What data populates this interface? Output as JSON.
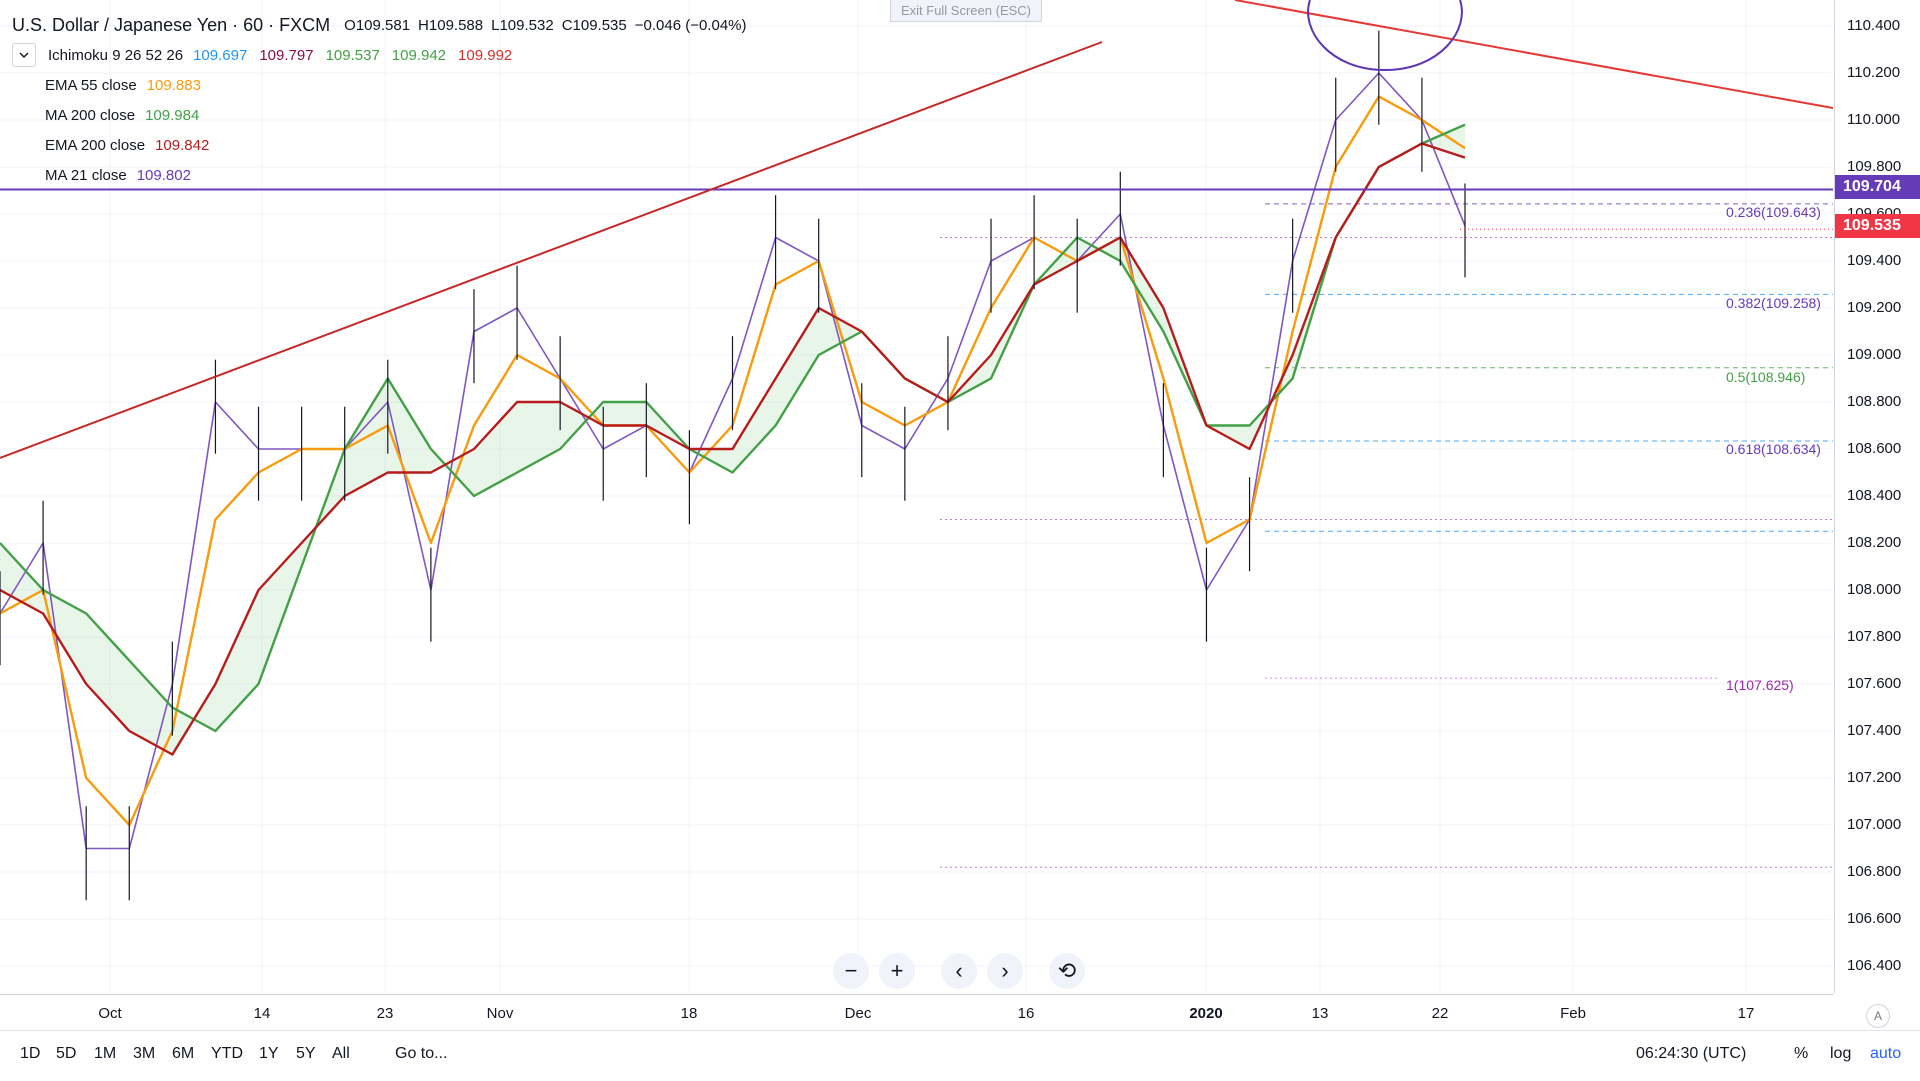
{
  "header": {
    "symbol_title": "U.S. Dollar / Japanese Yen · 60 · FXCM",
    "ohlc": {
      "open": "O109.581",
      "high": "H109.588",
      "low": "L109.532",
      "close": "C109.535",
      "change": "−0.046 (−0.04%)"
    }
  },
  "exit_fullscreen": "Exit Full Screen (ESC)",
  "indicators": [
    {
      "name": "Ichimoku 9 26 52 26",
      "values": [
        "109.697",
        "109.797",
        "109.537",
        "109.942",
        "109.992"
      ],
      "colors": [
        "#2196f3",
        "#880e4f",
        "#43a047",
        "#43a047",
        "#d32f2f"
      ]
    },
    {
      "name": "EMA 55 close",
      "values": [
        "109.883"
      ],
      "colors": [
        "#f89b0c"
      ]
    },
    {
      "name": "MA 200 close",
      "values": [
        "109.984"
      ],
      "colors": [
        "#43a047"
      ]
    },
    {
      "name": "EMA 200 close",
      "values": [
        "109.842"
      ],
      "colors": [
        "#b71c1c"
      ]
    },
    {
      "name": "MA 21 close",
      "values": [
        "109.802"
      ],
      "colors": [
        "#673ab7"
      ]
    }
  ],
  "price_axis": {
    "ticks": [
      "110.400",
      "110.200",
      "110.000",
      "109.800",
      "109.600",
      "109.400",
      "109.200",
      "109.000",
      "108.800",
      "108.600",
      "108.400",
      "108.200",
      "108.000",
      "107.800",
      "107.600",
      "107.400",
      "107.200",
      "107.000",
      "106.800",
      "106.600",
      "106.400"
    ],
    "current_price_label": "109.535",
    "current_price_color": "#f23645",
    "hline_label": "109.704",
    "hline_color": "#673ab7"
  },
  "time_axis": {
    "ticks": [
      "Oct",
      "14",
      "23",
      "Nov",
      "18",
      "Dec",
      "16",
      "2020",
      "13",
      "22",
      "Feb",
      "17"
    ]
  },
  "fibonacci": [
    {
      "label": "0.236(109.643)",
      "color": "#673ab7"
    },
    {
      "label": "0.382(109.258)",
      "color": "#673ab7"
    },
    {
      "label": "0.5(108.946)",
      "color": "#43a047"
    },
    {
      "label": "0.618(108.634)",
      "color": "#673ab7"
    },
    {
      "label": "1(107.625)",
      "color": "#9c27b0"
    }
  ],
  "chart_data": {
    "type": "line",
    "title": "U.S. Dollar / Japanese Yen · 60 · FXCM",
    "xlabel": "",
    "ylabel": "",
    "ylim": [
      106.3,
      110.5
    ],
    "x": [
      "Sep 26",
      "Oct 1",
      "Oct 4",
      "Oct 7",
      "Oct 10",
      "Oct 14",
      "Oct 17",
      "Oct 21",
      "Oct 24",
      "Oct 28",
      "Oct 31",
      "Nov 4",
      "Nov 7",
      "Nov 11",
      "Nov 14",
      "Nov 18",
      "Nov 21",
      "Nov 25",
      "Nov 28",
      "Dec 2",
      "Dec 5",
      "Dec 9",
      "Dec 12",
      "Dec 16",
      "Dec 19",
      "Dec 23",
      "Dec 27",
      "Dec 31",
      "Jan 3",
      "Jan 7",
      "Jan 10",
      "Jan 14",
      "Jan 17",
      "Jan 20",
      "Jan 22"
    ],
    "series": [
      {
        "name": "Close",
        "values": [
          107.9,
          108.2,
          106.9,
          106.9,
          107.6,
          108.8,
          108.6,
          108.6,
          108.6,
          108.8,
          108.0,
          109.1,
          109.2,
          108.9,
          108.6,
          108.7,
          108.5,
          108.9,
          109.5,
          109.4,
          108.7,
          108.6,
          108.9,
          109.4,
          109.5,
          109.4,
          109.6,
          108.7,
          108.0,
          108.3,
          109.4,
          110.0,
          110.2,
          110.0,
          109.55
        ],
        "color": "#7e57c2"
      },
      {
        "name": "EMA 55 close",
        "values": [
          107.9,
          108.0,
          107.2,
          107.0,
          107.4,
          108.3,
          108.5,
          108.6,
          108.6,
          108.7,
          108.2,
          108.7,
          109.0,
          108.9,
          108.7,
          108.7,
          108.5,
          108.7,
          109.3,
          109.4,
          108.8,
          108.7,
          108.8,
          109.2,
          109.5,
          109.4,
          109.5,
          108.9,
          108.2,
          108.3,
          109.1,
          109.8,
          110.1,
          110.0,
          109.88
        ],
        "color": "#f89b0c"
      },
      {
        "name": "MA 200 close",
        "values": [
          108.2,
          108.0,
          107.9,
          107.7,
          107.5,
          107.4,
          107.6,
          108.1,
          108.6,
          108.9,
          108.6,
          108.4,
          108.5,
          108.6,
          108.8,
          108.8,
          108.6,
          108.5,
          108.7,
          109.0,
          109.1,
          108.9,
          108.8,
          108.9,
          109.3,
          109.5,
          109.4,
          109.1,
          108.7,
          108.7,
          108.9,
          109.5,
          109.8,
          109.9,
          109.98
        ],
        "color": "#43a047"
      },
      {
        "name": "EMA 200 close",
        "values": [
          108.0,
          107.9,
          107.6,
          107.4,
          107.3,
          107.6,
          108.0,
          108.2,
          108.4,
          108.5,
          108.5,
          108.6,
          108.8,
          108.8,
          108.7,
          108.7,
          108.6,
          108.6,
          108.9,
          109.2,
          109.1,
          108.9,
          108.8,
          109.0,
          109.3,
          109.4,
          109.5,
          109.2,
          108.7,
          108.6,
          109.0,
          109.5,
          109.8,
          109.9,
          109.84
        ],
        "color": "#b71c1c"
      }
    ]
  },
  "nav_controls": [
    "−",
    "+",
    "‹",
    "›",
    "⟲"
  ],
  "bottom_bar": {
    "ranges": [
      "1D",
      "5D",
      "1M",
      "3M",
      "6M",
      "YTD",
      "1Y",
      "5Y",
      "All"
    ],
    "goto": "Go to...",
    "time": "06:24:30 (UTC)",
    "percent": "%",
    "log": "log",
    "auto": "auto"
  },
  "a_icon": "A"
}
